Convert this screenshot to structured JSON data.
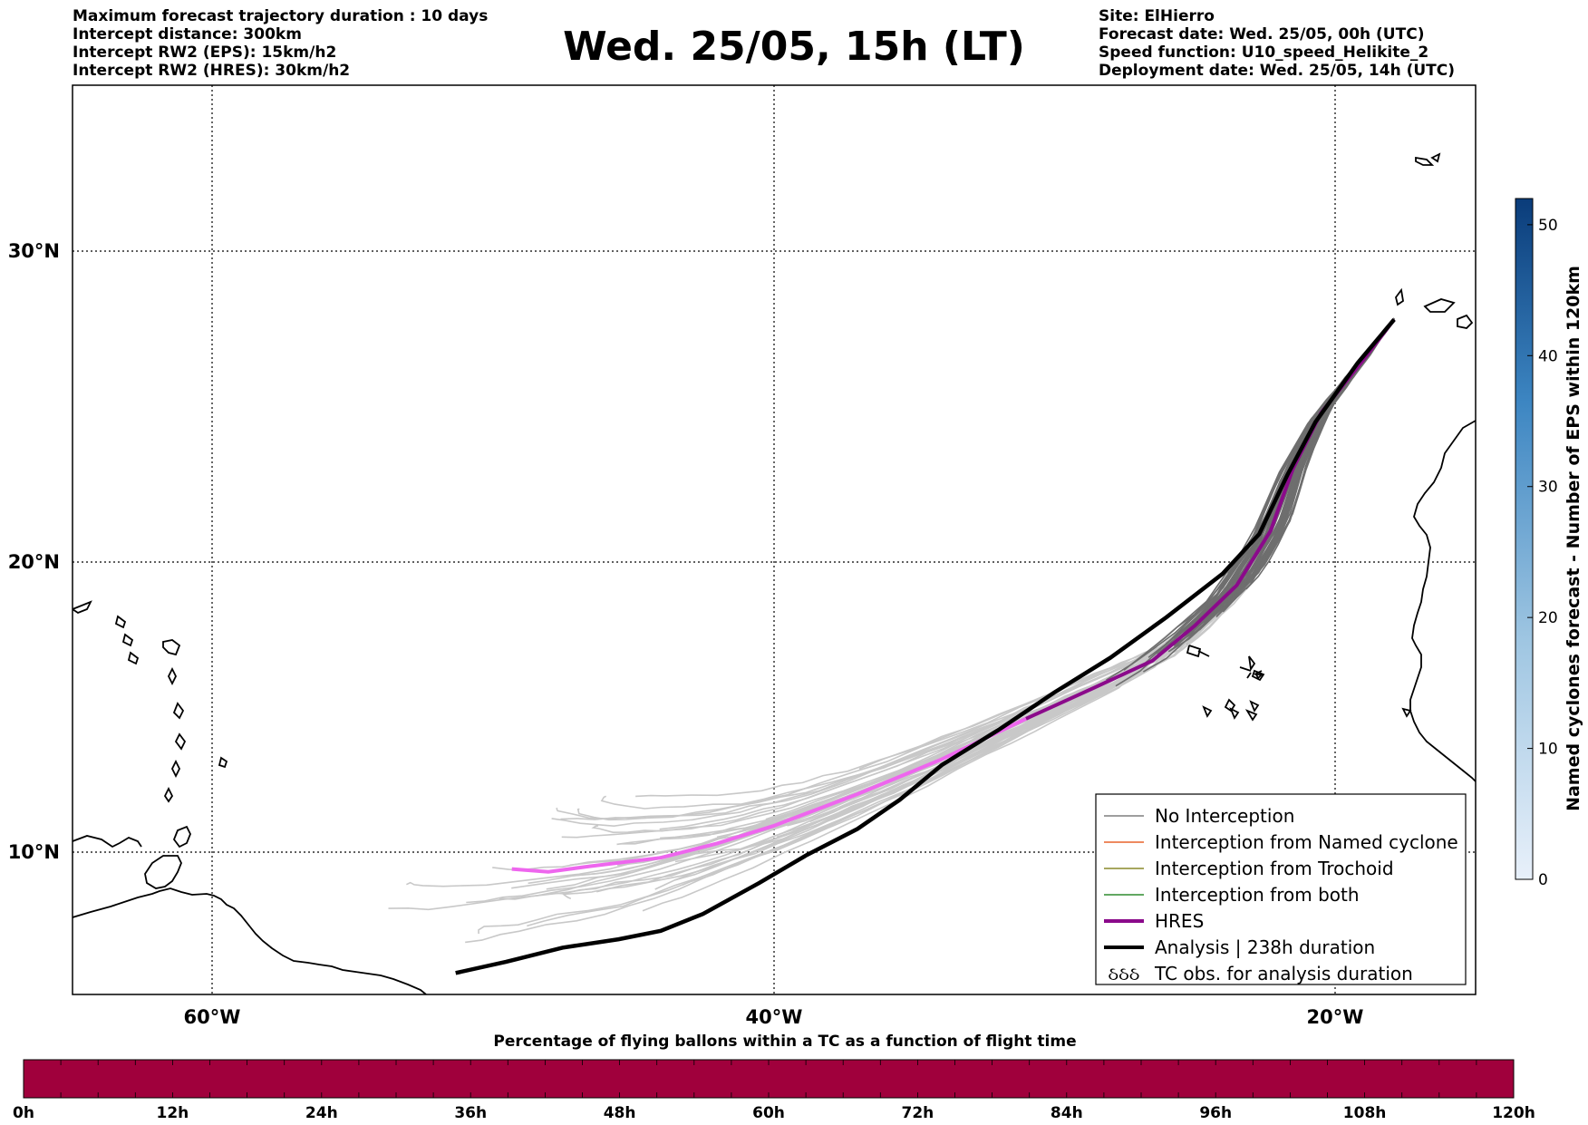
{
  "header_left": [
    "Maximum forecast trajectory duration : 10 days",
    "Intercept distance: 300km",
    "Intercept RW2 (EPS):  15km/h2",
    "Intercept RW2 (HRES): 30km/h2"
  ],
  "title": "Wed. 25/05, 15h (LT)",
  "header_right": [
    "Site: ElHierro",
    "Forecast date: Wed. 25/05, 00h (UTC)",
    "Speed function: U10_speed_Helikite_2",
    "Deployment date: Wed. 25/05, 14h (UTC)"
  ],
  "map": {
    "lat_labels": [
      "30°N",
      "20°N",
      "10°N"
    ],
    "lon_labels": [
      "60°W",
      "40°W",
      "20°W"
    ],
    "extent": {
      "lon": [
        -65,
        -15
      ],
      "lat": [
        5.4,
        34.7
      ]
    }
  },
  "legend": [
    {
      "label": "No Interception",
      "color": "#7f7f7f",
      "kind": "line"
    },
    {
      "label": "Interception from Named cyclone",
      "color": "#e8642c",
      "kind": "line"
    },
    {
      "label": "Interception from Trochoid",
      "color": "#8a8a2a",
      "kind": "line"
    },
    {
      "label": "Interception from both",
      "color": "#2e8b2e",
      "kind": "line"
    },
    {
      "label": "HRES",
      "color": "#8b0a8b",
      "kind": "thick"
    },
    {
      "label": "Analysis | 238h duration",
      "color": "#000000",
      "kind": "thick"
    },
    {
      "label": "TC obs. for analysis duration",
      "color": "#000000",
      "kind": "symbol"
    }
  ],
  "legend_symbol": "ઠઠઠ",
  "colorbar": {
    "label": "Named cyclones forecast - Number of EPS within 120km",
    "ticks": [
      "0",
      "10",
      "20",
      "30",
      "40",
      "50"
    ],
    "tick_values": [
      0,
      10,
      20,
      30,
      40,
      50
    ],
    "max": 52
  },
  "bottom_bar": {
    "title": "Percentage of flying ballons within a TC as a function of flight time",
    "color": "#a0003c",
    "ticks": [
      "0h",
      "12h",
      "24h",
      "36h",
      "48h",
      "60h",
      "72h",
      "84h",
      "96h",
      "108h",
      "120h"
    ],
    "tick_values": [
      0,
      12,
      24,
      36,
      48,
      60,
      72,
      84,
      96,
      108,
      120
    ]
  },
  "tracks": {
    "hres_color": "#8b0a8b",
    "hres_late_color": "#ee66ee",
    "analysis_color": "#000000",
    "nointercept_color": "#6e6e6e",
    "nointercept_late_color": "#c8c8c8",
    "hres": [
      [
        -17.9,
        27.8
      ],
      [
        -19,
        26.5
      ],
      [
        -20.5,
        24.8
      ],
      [
        -21.5,
        23.0
      ],
      [
        -22.3,
        21.0
      ],
      [
        -23.5,
        19.2
      ],
      [
        -25.0,
        17.8
      ],
      [
        -26.5,
        16.6
      ],
      [
        -28.5,
        15.7
      ],
      [
        -31.0,
        14.6
      ],
      [
        -34.0,
        13.2
      ],
      [
        -37.0,
        12.0
      ],
      [
        -40.0,
        10.9
      ],
      [
        -42.0,
        10.3
      ],
      [
        -44.0,
        9.8
      ],
      [
        -46.5,
        9.5
      ],
      [
        -48.0,
        9.3
      ],
      [
        -49.3,
        9.4
      ]
    ],
    "analysis": [
      [
        -17.9,
        27.8
      ],
      [
        -19.2,
        26.4
      ],
      [
        -20.7,
        24.5
      ],
      [
        -21.7,
        22.8
      ],
      [
        -22.7,
        20.9
      ],
      [
        -24.0,
        19.6
      ],
      [
        -26.0,
        18.1
      ],
      [
        -28.0,
        16.7
      ],
      [
        -30.0,
        15.5
      ],
      [
        -32.0,
        14.2
      ],
      [
        -34.0,
        13.0
      ],
      [
        -35.5,
        11.8
      ],
      [
        -37.0,
        10.8
      ],
      [
        -38.8,
        9.9
      ],
      [
        -40.5,
        8.9
      ],
      [
        -42.5,
        7.8
      ],
      [
        -44.0,
        7.2
      ],
      [
        -45.5,
        6.9
      ],
      [
        -47.5,
        6.6
      ],
      [
        -49.5,
        6.1
      ],
      [
        -51.3,
        5.7
      ]
    ]
  }
}
